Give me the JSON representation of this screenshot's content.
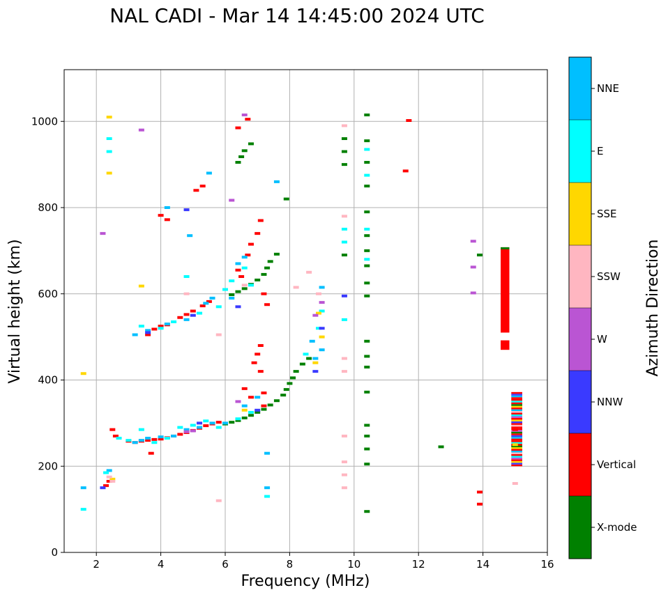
{
  "chart_data": {
    "type": "scatter",
    "title": "NAL CADI - Mar 14 14:45:00 2024 UTC",
    "xlabel": "Frequency (MHz)",
    "ylabel": "Virtual height (km)",
    "xlim": [
      1,
      16
    ],
    "ylim": [
      0,
      1120
    ],
    "xticks": [
      2,
      4,
      6,
      8,
      10,
      12,
      14,
      16
    ],
    "yticks": [
      0,
      200,
      400,
      600,
      800,
      1000
    ],
    "grid": true,
    "legend": {
      "type": "colorbar",
      "placement": "right",
      "label": "Azimuth Direction",
      "entries": [
        {
          "name": "NNE",
          "color": "#00bfff"
        },
        {
          "name": "E",
          "color": "#00ffff"
        },
        {
          "name": "SSE",
          "color": "#ffd700"
        },
        {
          "name": "SSW",
          "color": "#ffb6c1"
        },
        {
          "name": "W",
          "color": "#ba55d3"
        },
        {
          "name": "NNW",
          "color": "#3a3aff"
        },
        {
          "name": "Vertical",
          "color": "#ff0000"
        },
        {
          "name": "X-mode",
          "color": "#008000"
        }
      ]
    },
    "series": [
      {
        "name": "X-mode",
        "color": "#008000",
        "points": [
          [
            6.0,
            298
          ],
          [
            6.2,
            302
          ],
          [
            6.4,
            306
          ],
          [
            6.6,
            312
          ],
          [
            6.8,
            318
          ],
          [
            7.0,
            325
          ],
          [
            7.2,
            332
          ],
          [
            7.4,
            342
          ],
          [
            7.6,
            352
          ],
          [
            7.8,
            365
          ],
          [
            7.9,
            378
          ],
          [
            8.0,
            392
          ],
          [
            8.1,
            405
          ],
          [
            8.2,
            420
          ],
          [
            8.4,
            437
          ],
          [
            8.6,
            450
          ],
          [
            6.2,
            598
          ],
          [
            6.4,
            605
          ],
          [
            6.6,
            612
          ],
          [
            6.8,
            622
          ],
          [
            7.0,
            632
          ],
          [
            7.2,
            645
          ],
          [
            7.3,
            660
          ],
          [
            7.4,
            675
          ],
          [
            7.6,
            692
          ],
          [
            6.4,
            905
          ],
          [
            6.5,
            918
          ],
          [
            6.6,
            932
          ],
          [
            6.8,
            948
          ],
          [
            10.4,
            1015
          ],
          [
            10.4,
            955
          ],
          [
            10.4,
            905
          ],
          [
            10.4,
            850
          ],
          [
            10.4,
            790
          ],
          [
            10.4,
            735
          ],
          [
            10.4,
            700
          ],
          [
            10.4,
            665
          ],
          [
            10.4,
            625
          ],
          [
            10.4,
            595
          ],
          [
            10.4,
            490
          ],
          [
            10.4,
            455
          ],
          [
            10.4,
            430
          ],
          [
            10.4,
            372
          ],
          [
            10.4,
            295
          ],
          [
            10.4,
            270
          ],
          [
            10.4,
            240
          ],
          [
            10.4,
            205
          ],
          [
            10.4,
            95
          ],
          [
            9.7,
            960
          ],
          [
            9.7,
            930
          ],
          [
            9.7,
            900
          ],
          [
            9.7,
            690
          ],
          [
            12.7,
            245
          ],
          [
            13.9,
            690
          ],
          [
            7.9,
            820
          ]
        ]
      },
      {
        "name": "Vertical",
        "color": "#ff0000",
        "points": [
          [
            2.3,
            155
          ],
          [
            2.4,
            165
          ],
          [
            2.5,
            285
          ],
          [
            2.6,
            270
          ],
          [
            3.0,
            258
          ],
          [
            3.2,
            255
          ],
          [
            3.4,
            258
          ],
          [
            3.6,
            260
          ],
          [
            3.8,
            262
          ],
          [
            4.0,
            263
          ],
          [
            4.2,
            266
          ],
          [
            4.4,
            270
          ],
          [
            4.6,
            274
          ],
          [
            4.8,
            278
          ],
          [
            5.0,
            283
          ],
          [
            5.2,
            288
          ],
          [
            5.4,
            294
          ],
          [
            5.6,
            298
          ],
          [
            5.8,
            302
          ],
          [
            3.6,
            505
          ],
          [
            3.8,
            518
          ],
          [
            4.0,
            525
          ],
          [
            4.2,
            528
          ],
          [
            4.6,
            545
          ],
          [
            4.8,
            552
          ],
          [
            5.0,
            560
          ],
          [
            5.3,
            572
          ],
          [
            5.5,
            582
          ],
          [
            4.0,
            782
          ],
          [
            4.2,
            772
          ],
          [
            5.1,
            840
          ],
          [
            5.3,
            850
          ],
          [
            6.4,
            655
          ],
          [
            6.5,
            640
          ],
          [
            6.7,
            690
          ],
          [
            6.8,
            715
          ],
          [
            7.0,
            740
          ],
          [
            7.1,
            770
          ],
          [
            7.2,
            600
          ],
          [
            6.6,
            380
          ],
          [
            6.8,
            360
          ],
          [
            6.9,
            440
          ],
          [
            7.0,
            460
          ],
          [
            7.1,
            480
          ],
          [
            7.2,
            340
          ],
          [
            7.3,
            575
          ],
          [
            7.1,
            420
          ],
          [
            7.2,
            370
          ],
          [
            3.7,
            230
          ],
          [
            6.4,
            985
          ],
          [
            6.7,
            1005
          ],
          [
            11.6,
            885
          ],
          [
            11.7,
            1002
          ],
          [
            13.9,
            140
          ],
          [
            13.9,
            112
          ],
          [
            14.7,
            590
          ],
          [
            14.7,
            480
          ],
          [
            15.0,
            285
          ]
        ]
      },
      {
        "name": "NNE",
        "color": "#00bfff",
        "points": [
          [
            1.6,
            150
          ],
          [
            2.4,
            190
          ],
          [
            3.2,
            255
          ],
          [
            3.4,
            260
          ],
          [
            3.6,
            265
          ],
          [
            4.0,
            268
          ],
          [
            4.4,
            270
          ],
          [
            4.8,
            285
          ],
          [
            5.2,
            290
          ],
          [
            5.6,
            300
          ],
          [
            6.0,
            300
          ],
          [
            6.6,
            340
          ],
          [
            7.0,
            360
          ],
          [
            3.2,
            505
          ],
          [
            3.6,
            515
          ],
          [
            4.2,
            530
          ],
          [
            4.8,
            540
          ],
          [
            5.4,
            578
          ],
          [
            5.6,
            590
          ],
          [
            6.2,
            590
          ],
          [
            6.4,
            670
          ],
          [
            6.6,
            685
          ],
          [
            4.2,
            800
          ],
          [
            4.9,
            735
          ],
          [
            5.5,
            880
          ],
          [
            7.6,
            860
          ],
          [
            8.7,
            490
          ],
          [
            8.8,
            450
          ],
          [
            9.0,
            615
          ],
          [
            9.0,
            470
          ],
          [
            7.3,
            230
          ],
          [
            7.3,
            150
          ]
        ]
      },
      {
        "name": "E",
        "color": "#00ffff",
        "points": [
          [
            1.6,
            100
          ],
          [
            2.3,
            185
          ],
          [
            2.7,
            265
          ],
          [
            3.0,
            260
          ],
          [
            3.4,
            285
          ],
          [
            3.8,
            255
          ],
          [
            4.2,
            265
          ],
          [
            4.6,
            290
          ],
          [
            5.0,
            295
          ],
          [
            5.4,
            305
          ],
          [
            5.8,
            290
          ],
          [
            6.4,
            310
          ],
          [
            6.8,
            325
          ],
          [
            3.4,
            525
          ],
          [
            4.0,
            520
          ],
          [
            4.4,
            535
          ],
          [
            5.2,
            555
          ],
          [
            5.8,
            570
          ],
          [
            6.0,
            610
          ],
          [
            6.2,
            630
          ],
          [
            6.6,
            660
          ],
          [
            6.8,
            620
          ],
          [
            2.4,
            960
          ],
          [
            2.4,
            930
          ],
          [
            4.8,
            640
          ],
          [
            8.5,
            460
          ],
          [
            8.9,
            520
          ],
          [
            9.0,
            560
          ],
          [
            9.7,
            750
          ],
          [
            9.7,
            720
          ],
          [
            10.4,
            935
          ],
          [
            10.4,
            875
          ],
          [
            10.4,
            750
          ],
          [
            10.4,
            680
          ],
          [
            9.7,
            540
          ],
          [
            7.3,
            130
          ]
        ]
      },
      {
        "name": "SSE",
        "color": "#ffd700",
        "points": [
          [
            1.6,
            415
          ],
          [
            2.4,
            880
          ],
          [
            2.4,
            1010
          ],
          [
            3.4,
            618
          ],
          [
            2.5,
            170
          ],
          [
            6.6,
            330
          ],
          [
            8.8,
            440
          ],
          [
            8.9,
            555
          ],
          [
            9.0,
            500
          ],
          [
            15.0,
            250
          ]
        ]
      },
      {
        "name": "SSW",
        "color": "#ffb6c1",
        "points": [
          [
            2.5,
            165
          ],
          [
            2.4,
            175
          ],
          [
            4.8,
            600
          ],
          [
            6.6,
            620
          ],
          [
            9.7,
            990
          ],
          [
            9.7,
            780
          ],
          [
            9.7,
            450
          ],
          [
            9.7,
            420
          ],
          [
            9.7,
            270
          ],
          [
            9.7,
            210
          ],
          [
            9.7,
            180
          ],
          [
            9.7,
            150
          ],
          [
            8.2,
            615
          ],
          [
            8.6,
            650
          ],
          [
            8.9,
            600
          ],
          [
            15.0,
            160
          ],
          [
            5.8,
            120
          ],
          [
            5.8,
            505
          ]
        ]
      },
      {
        "name": "W",
        "color": "#ba55d3",
        "points": [
          [
            3.4,
            980
          ],
          [
            2.2,
            740
          ],
          [
            6.2,
            817
          ],
          [
            4.8,
            280
          ],
          [
            5.0,
            282
          ],
          [
            6.6,
            1015
          ],
          [
            13.7,
            722
          ],
          [
            13.7,
            662
          ],
          [
            13.7,
            602
          ],
          [
            9.0,
            580
          ],
          [
            8.8,
            550
          ],
          [
            6.4,
            350
          ]
        ]
      },
      {
        "name": "NNW",
        "color": "#3a3aff",
        "points": [
          [
            2.2,
            150
          ],
          [
            3.6,
            510
          ],
          [
            4.8,
            795
          ],
          [
            5.0,
            550
          ],
          [
            6.4,
            570
          ],
          [
            7.0,
            330
          ],
          [
            8.8,
            420
          ],
          [
            9.0,
            520
          ],
          [
            9.7,
            595
          ],
          [
            5.2,
            300
          ]
        ]
      }
    ],
    "bands": [
      {
        "name": "Vertical",
        "color": "#ff0000",
        "x": [
          14.55,
          14.82
        ],
        "y": [
          470,
          708
        ]
      },
      {
        "name": "mixed",
        "color": "#ff0000",
        "x": [
          14.88,
          15.22
        ],
        "y": [
          200,
          370
        ]
      }
    ]
  }
}
